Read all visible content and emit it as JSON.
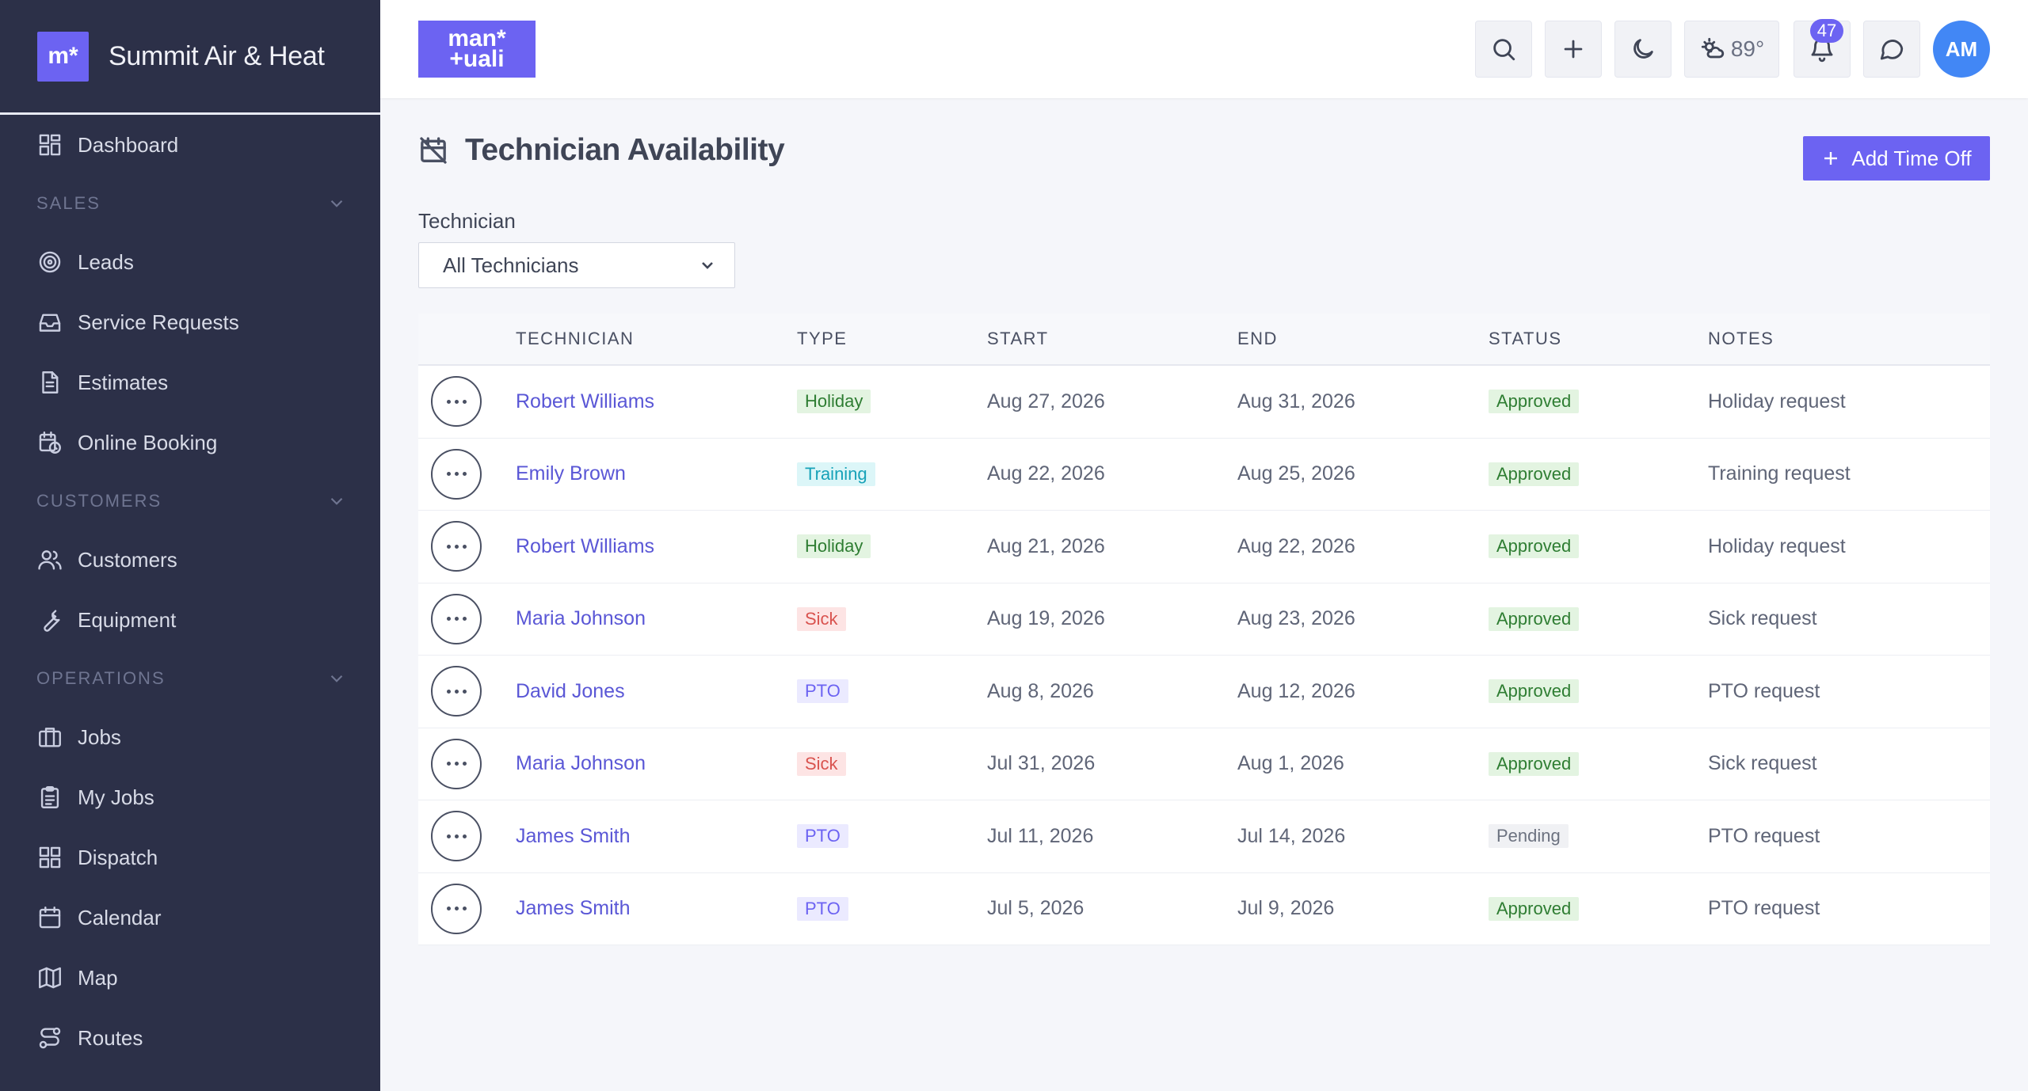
{
  "sidebar": {
    "brand_logo": "m*",
    "brand_name": "Summit Air & Heat",
    "items": [
      {
        "type": "item",
        "label": "Dashboard",
        "icon": "dashboard-icon"
      },
      {
        "type": "section",
        "label": "SALES"
      },
      {
        "type": "item",
        "label": "Leads",
        "icon": "target-icon"
      },
      {
        "type": "item",
        "label": "Service Requests",
        "icon": "inbox-icon"
      },
      {
        "type": "item",
        "label": "Estimates",
        "icon": "document-icon"
      },
      {
        "type": "item",
        "label": "Online Booking",
        "icon": "calendar-clock-icon"
      },
      {
        "type": "section",
        "label": "CUSTOMERS"
      },
      {
        "type": "item",
        "label": "Customers",
        "icon": "users-icon"
      },
      {
        "type": "item",
        "label": "Equipment",
        "icon": "wrench-icon"
      },
      {
        "type": "section",
        "label": "OPERATIONS"
      },
      {
        "type": "item",
        "label": "Jobs",
        "icon": "briefcase-icon"
      },
      {
        "type": "item",
        "label": "My Jobs",
        "icon": "clipboard-icon"
      },
      {
        "type": "item",
        "label": "Dispatch",
        "icon": "grid-icon"
      },
      {
        "type": "item",
        "label": "Calendar",
        "icon": "calendar-icon"
      },
      {
        "type": "item",
        "label": "Map",
        "icon": "map-icon"
      },
      {
        "type": "item",
        "label": "Routes",
        "icon": "route-icon"
      }
    ]
  },
  "topbar": {
    "logo_text": "man* +uali",
    "weather_temp": "89°",
    "notification_count": "47",
    "avatar_initials": "AM"
  },
  "page": {
    "title": "Technician Availability",
    "add_button": "Add Time Off",
    "filter_label": "Technician",
    "filter_value": "All Technicians"
  },
  "table": {
    "headers": [
      "TECHNICIAN",
      "TYPE",
      "START",
      "END",
      "STATUS",
      "NOTES"
    ],
    "rows": [
      {
        "technician": "Robert Williams",
        "type": "Holiday",
        "start": "Aug 27, 2026",
        "end": "Aug 31, 2026",
        "status": "Approved",
        "notes": "Holiday request"
      },
      {
        "technician": "Emily Brown",
        "type": "Training",
        "start": "Aug 22, 2026",
        "end": "Aug 25, 2026",
        "status": "Approved",
        "notes": "Training request"
      },
      {
        "technician": "Robert Williams",
        "type": "Holiday",
        "start": "Aug 21, 2026",
        "end": "Aug 22, 2026",
        "status": "Approved",
        "notes": "Holiday request"
      },
      {
        "technician": "Maria Johnson",
        "type": "Sick",
        "start": "Aug 19, 2026",
        "end": "Aug 23, 2026",
        "status": "Approved",
        "notes": "Sick request"
      },
      {
        "technician": "David Jones",
        "type": "PTO",
        "start": "Aug 8, 2026",
        "end": "Aug 12, 2026",
        "status": "Approved",
        "notes": "PTO request"
      },
      {
        "technician": "Maria Johnson",
        "type": "Sick",
        "start": "Jul 31, 2026",
        "end": "Aug 1, 2026",
        "status": "Approved",
        "notes": "Sick request"
      },
      {
        "technician": "James Smith",
        "type": "PTO",
        "start": "Jul 11, 2026",
        "end": "Jul 14, 2026",
        "status": "Pending",
        "notes": "PTO request"
      },
      {
        "technician": "James Smith",
        "type": "PTO",
        "start": "Jul 5, 2026",
        "end": "Jul 9, 2026",
        "status": "Approved",
        "notes": "PTO request"
      }
    ]
  },
  "colors": {
    "accent": "#6c63f2",
    "sidebar_bg": "#2c3048",
    "type_styles": {
      "Holiday": {
        "bg": "#e3f4e1",
        "fg": "#2e7d32"
      },
      "Training": {
        "bg": "#dcf6f8",
        "fg": "#17a2b8"
      },
      "Sick": {
        "bg": "#fde4e4",
        "fg": "#d9534f"
      },
      "PTO": {
        "bg": "#ebeaff",
        "fg": "#6c63f2"
      }
    },
    "status_styles": {
      "Approved": {
        "bg": "#e3f4e1",
        "fg": "#2e7d32"
      },
      "Pending": {
        "bg": "#f0f1f4",
        "fg": "#6c7280"
      }
    }
  }
}
